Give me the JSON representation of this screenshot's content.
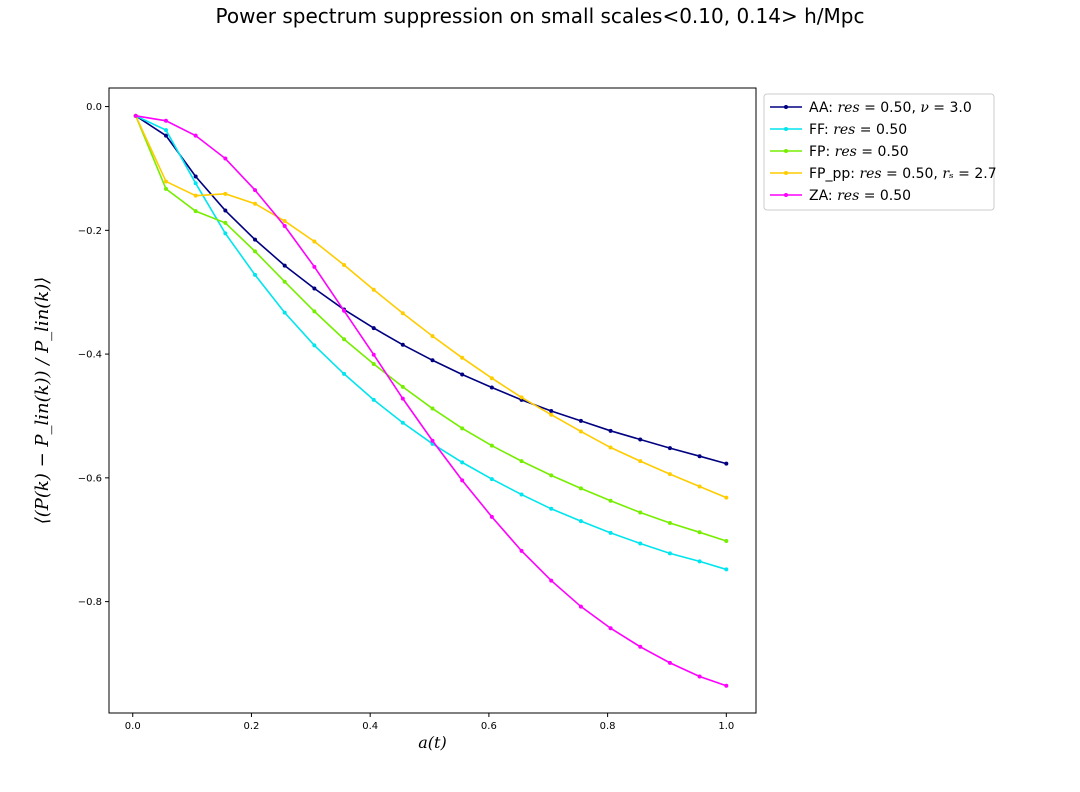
{
  "chart_data": {
    "type": "line",
    "title": "Power spectrum suppression on small scales<0.10, 0.14> h/Mpc",
    "xlabel": "a(t)",
    "ylabel": "⟨(P(k) − P_lin(k)) / P_lin(k)⟩",
    "xlim": [
      -0.04,
      1.05
    ],
    "ylim": [
      -0.98,
      0.03
    ],
    "xticks": [
      0.0,
      0.2,
      0.4,
      0.6,
      0.8,
      1.0
    ],
    "xtick_labels": [
      "0.0",
      "0.2",
      "0.4",
      "0.6",
      "0.8",
      "1.0"
    ],
    "yticks": [
      0.0,
      -0.2,
      -0.4,
      -0.6,
      -0.8
    ],
    "ytick_labels": [
      "0.0",
      "−0.2",
      "−0.4",
      "−0.6",
      "−0.8"
    ],
    "grid": false,
    "legend_position": "outside-upper-right",
    "series": [
      {
        "name": "AA: res = 0.50, ν = 3.0",
        "legend_parts": [
          [
            "AA: ",
            false
          ],
          [
            "res",
            true
          ],
          [
            " = 0.50, ",
            false
          ],
          [
            "ν",
            true
          ],
          [
            " = 3.0",
            false
          ]
        ],
        "color": "#000080",
        "x": [
          0.005,
          0.056,
          0.106,
          0.156,
          0.206,
          0.256,
          0.306,
          0.356,
          0.406,
          0.455,
          0.505,
          0.555,
          0.605,
          0.655,
          0.705,
          0.755,
          0.805,
          0.855,
          0.905,
          0.955,
          1.0
        ],
        "y": [
          -0.015,
          -0.047,
          -0.113,
          -0.168,
          -0.215,
          -0.257,
          -0.294,
          -0.328,
          -0.358,
          -0.385,
          -0.41,
          -0.433,
          -0.454,
          -0.474,
          -0.492,
          -0.508,
          -0.524,
          -0.538,
          -0.552,
          -0.565,
          -0.577
        ]
      },
      {
        "name": "FF: res = 0.50",
        "legend_parts": [
          [
            "FF: ",
            false
          ],
          [
            "res",
            true
          ],
          [
            " = 0.50",
            false
          ]
        ],
        "color": "#00e5ee",
        "x": [
          0.005,
          0.056,
          0.106,
          0.156,
          0.206,
          0.256,
          0.306,
          0.356,
          0.406,
          0.455,
          0.505,
          0.555,
          0.605,
          0.655,
          0.705,
          0.755,
          0.805,
          0.855,
          0.905,
          0.955,
          1.0
        ],
        "y": [
          -0.015,
          -0.038,
          -0.124,
          -0.205,
          -0.272,
          -0.333,
          -0.386,
          -0.432,
          -0.474,
          -0.511,
          -0.545,
          -0.575,
          -0.602,
          -0.627,
          -0.65,
          -0.67,
          -0.689,
          -0.706,
          -0.722,
          -0.735,
          -0.748
        ]
      },
      {
        "name": "FP: res = 0.50",
        "legend_parts": [
          [
            "FP: ",
            false
          ],
          [
            "res",
            true
          ],
          [
            " = 0.50",
            false
          ]
        ],
        "color": "#76ee00",
        "x": [
          0.005,
          0.056,
          0.106,
          0.156,
          0.206,
          0.256,
          0.306,
          0.356,
          0.406,
          0.455,
          0.505,
          0.555,
          0.605,
          0.655,
          0.705,
          0.755,
          0.805,
          0.855,
          0.905,
          0.955,
          1.0
        ],
        "y": [
          -0.015,
          -0.133,
          -0.169,
          -0.188,
          -0.234,
          -0.283,
          -0.331,
          -0.376,
          -0.416,
          -0.453,
          -0.488,
          -0.52,
          -0.548,
          -0.573,
          -0.596,
          -0.617,
          -0.637,
          -0.656,
          -0.673,
          -0.688,
          -0.702
        ]
      },
      {
        "name": "FP_pp: res = 0.50, r_s = 2.7",
        "legend_parts": [
          [
            "FP_pp: ",
            false
          ],
          [
            "res",
            true
          ],
          [
            " = 0.50, ",
            false
          ],
          [
            "rₛ",
            true
          ],
          [
            " = 2.7",
            false
          ]
        ],
        "color": "#ffcc00",
        "x": [
          0.005,
          0.056,
          0.106,
          0.156,
          0.206,
          0.256,
          0.306,
          0.356,
          0.406,
          0.455,
          0.505,
          0.555,
          0.605,
          0.655,
          0.705,
          0.755,
          0.805,
          0.855,
          0.905,
          0.955,
          1.0
        ],
        "y": [
          -0.015,
          -0.121,
          -0.144,
          -0.141,
          -0.157,
          -0.185,
          -0.218,
          -0.256,
          -0.296,
          -0.334,
          -0.371,
          -0.406,
          -0.439,
          -0.47,
          -0.498,
          -0.525,
          -0.551,
          -0.573,
          -0.594,
          -0.614,
          -0.632
        ]
      },
      {
        "name": "ZA: res = 0.50",
        "legend_parts": [
          [
            "ZA: ",
            false
          ],
          [
            "res",
            true
          ],
          [
            " = 0.50",
            false
          ]
        ],
        "color": "#ff00ff",
        "x": [
          0.005,
          0.056,
          0.106,
          0.156,
          0.206,
          0.256,
          0.306,
          0.356,
          0.406,
          0.455,
          0.505,
          0.555,
          0.605,
          0.655,
          0.705,
          0.755,
          0.805,
          0.855,
          0.905,
          0.955,
          1.0
        ],
        "y": [
          -0.015,
          -0.023,
          -0.047,
          -0.084,
          -0.135,
          -0.193,
          -0.259,
          -0.33,
          -0.401,
          -0.472,
          -0.54,
          -0.604,
          -0.663,
          -0.718,
          -0.766,
          -0.808,
          -0.843,
          -0.873,
          -0.899,
          -0.921,
          -0.936
        ]
      }
    ]
  }
}
